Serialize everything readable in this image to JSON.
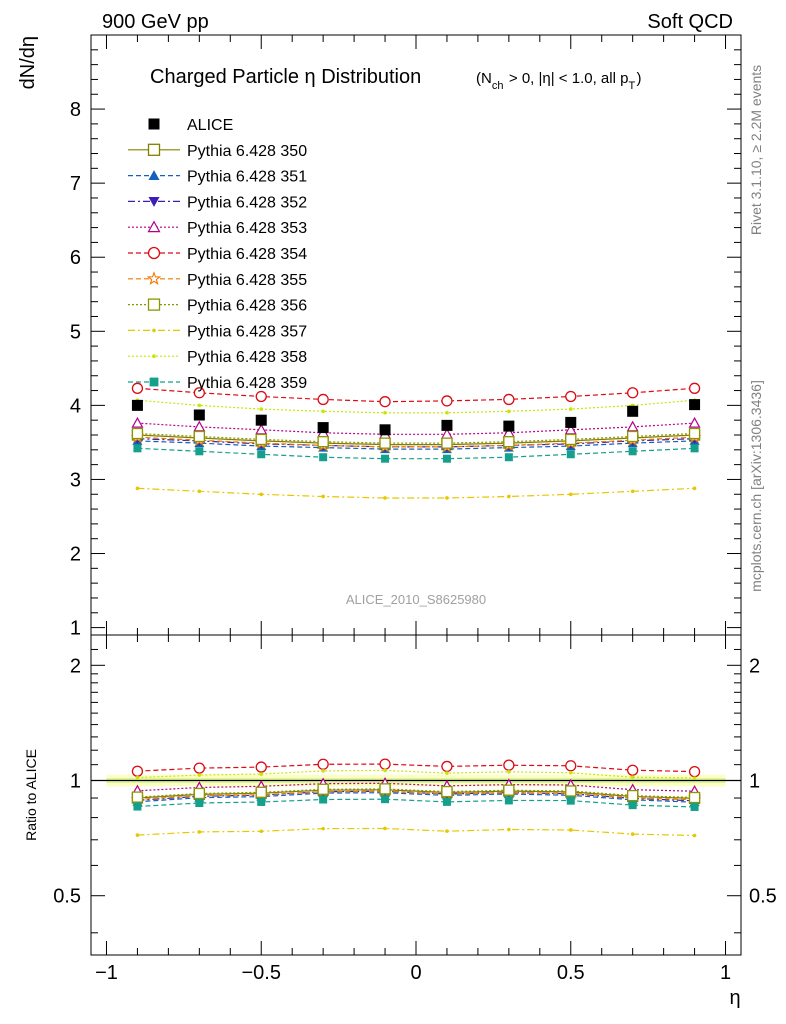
{
  "header": {
    "left": "900 GeV pp",
    "right": "Soft QCD",
    "side_top": "Rivet 3.1.10, ≥ 2.2M events",
    "side_bottom": "mcplots.cern.ch [arXiv:1306.3436]"
  },
  "chart_data": {
    "type": "line",
    "title_main": "Charged Particle η Distribution",
    "title_cuts": "(N_ch > 0, |η| < 1.0, all p_T)",
    "watermark": "ALICE_2010_S8625980",
    "xlabel": "η",
    "ylabel": "dN/dη",
    "ratio_ylabel": "Ratio to ALICE",
    "xlim": [
      -1.05,
      1.05
    ],
    "ylim": [
      0.9,
      9.0
    ],
    "ratio_ylim": [
      0.35,
      2.4
    ],
    "x_ticks": [
      "−1",
      "−0.5",
      "0",
      "0.5",
      "1"
    ],
    "y_ticks": [
      "1",
      "2",
      "3",
      "4",
      "5",
      "6",
      "7",
      "8"
    ],
    "ratio_ticks": [
      "0.5",
      "1",
      "2"
    ],
    "x": [
      -0.9,
      -0.7,
      -0.5,
      -0.3,
      -0.1,
      0.1,
      0.3,
      0.5,
      0.7,
      0.9
    ],
    "reference": {
      "name": "ALICE",
      "values": [
        4.0,
        3.87,
        3.8,
        3.7,
        3.67,
        3.73,
        3.72,
        3.77,
        3.92,
        4.01
      ],
      "color": "#000000"
    },
    "series": [
      {
        "name": "Pythia 6.428 350",
        "color": "#808000",
        "marker": "square-open",
        "dash": "solid",
        "values": [
          3.6,
          3.56,
          3.52,
          3.49,
          3.47,
          3.47,
          3.49,
          3.52,
          3.56,
          3.6
        ]
      },
      {
        "name": "Pythia 6.428 351",
        "color": "#1560bd",
        "marker": "triangle-up-filled",
        "dash": "dashed",
        "values": [
          3.52,
          3.49,
          3.45,
          3.43,
          3.41,
          3.41,
          3.43,
          3.45,
          3.49,
          3.52
        ]
      },
      {
        "name": "Pythia 6.428 352",
        "color": "#3c1eb4",
        "marker": "triangle-down-filled",
        "dash": "dashdot",
        "values": [
          3.55,
          3.52,
          3.48,
          3.46,
          3.44,
          3.44,
          3.46,
          3.48,
          3.52,
          3.55
        ]
      },
      {
        "name": "Pythia 6.428 353",
        "color": "#b4008c",
        "marker": "triangle-up-open",
        "dash": "dotted",
        "values": [
          3.76,
          3.71,
          3.67,
          3.63,
          3.61,
          3.61,
          3.63,
          3.67,
          3.71,
          3.76
        ]
      },
      {
        "name": "Pythia 6.428 354",
        "color": "#dc0a14",
        "marker": "circle-open",
        "dash": "dashed",
        "values": [
          4.23,
          4.17,
          4.12,
          4.08,
          4.05,
          4.06,
          4.08,
          4.12,
          4.17,
          4.23
        ]
      },
      {
        "name": "Pythia 6.428 355",
        "color": "#f07800",
        "marker": "star-open",
        "dash": "dashed",
        "values": [
          3.57,
          3.53,
          3.49,
          3.46,
          3.44,
          3.44,
          3.46,
          3.49,
          3.53,
          3.57
        ]
      },
      {
        "name": "Pythia 6.428 356",
        "color": "#8c9600",
        "marker": "square-open",
        "dash": "dotted",
        "values": [
          3.62,
          3.58,
          3.54,
          3.51,
          3.49,
          3.49,
          3.51,
          3.54,
          3.58,
          3.62
        ]
      },
      {
        "name": "Pythia 6.428 357",
        "color": "#e6c800",
        "marker": "dot",
        "dash": "dashdot",
        "values": [
          2.88,
          2.84,
          2.8,
          2.77,
          2.75,
          2.75,
          2.77,
          2.8,
          2.84,
          2.88
        ]
      },
      {
        "name": "Pythia 6.428 358",
        "color": "#c8e600",
        "marker": "dot",
        "dash": "dotted",
        "values": [
          4.07,
          4.0,
          3.95,
          3.92,
          3.9,
          3.9,
          3.92,
          3.95,
          4.0,
          4.07
        ]
      },
      {
        "name": "Pythia 6.428 359",
        "color": "#14a08c",
        "marker": "square-filled",
        "dash": "dashed",
        "values": [
          3.42,
          3.38,
          3.34,
          3.3,
          3.28,
          3.28,
          3.3,
          3.34,
          3.38,
          3.42
        ]
      }
    ]
  }
}
